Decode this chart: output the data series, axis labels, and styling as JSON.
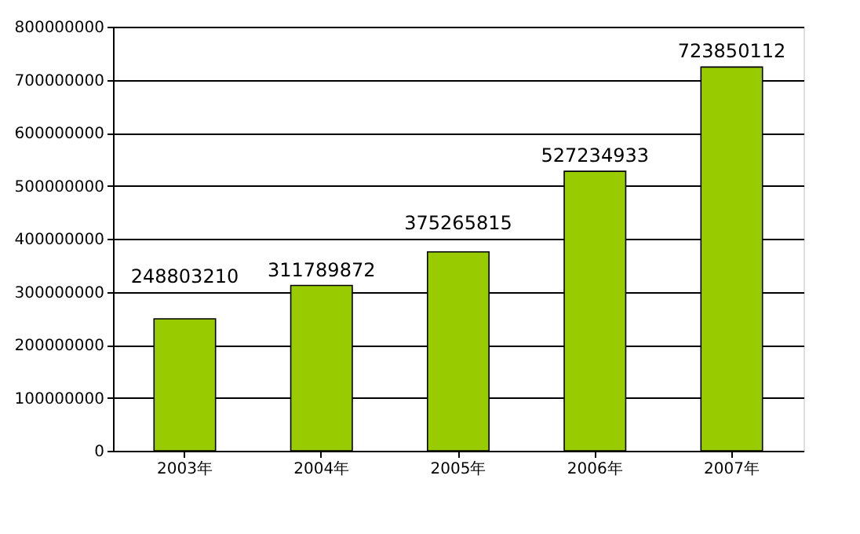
{
  "chart_data": {
    "type": "bar",
    "categories": [
      "2003年",
      "2004年",
      "2005年",
      "2006年",
      "2007年"
    ],
    "values": [
      248803210,
      311789872,
      375265815,
      527234933,
      723850112
    ],
    "color": "#99cc00",
    "ylim": [
      0,
      800000000
    ],
    "yticks": [
      0,
      100000000,
      200000000,
      300000000,
      400000000,
      500000000,
      600000000,
      700000000,
      800000000
    ],
    "grid": "y",
    "data_labels": true
  }
}
